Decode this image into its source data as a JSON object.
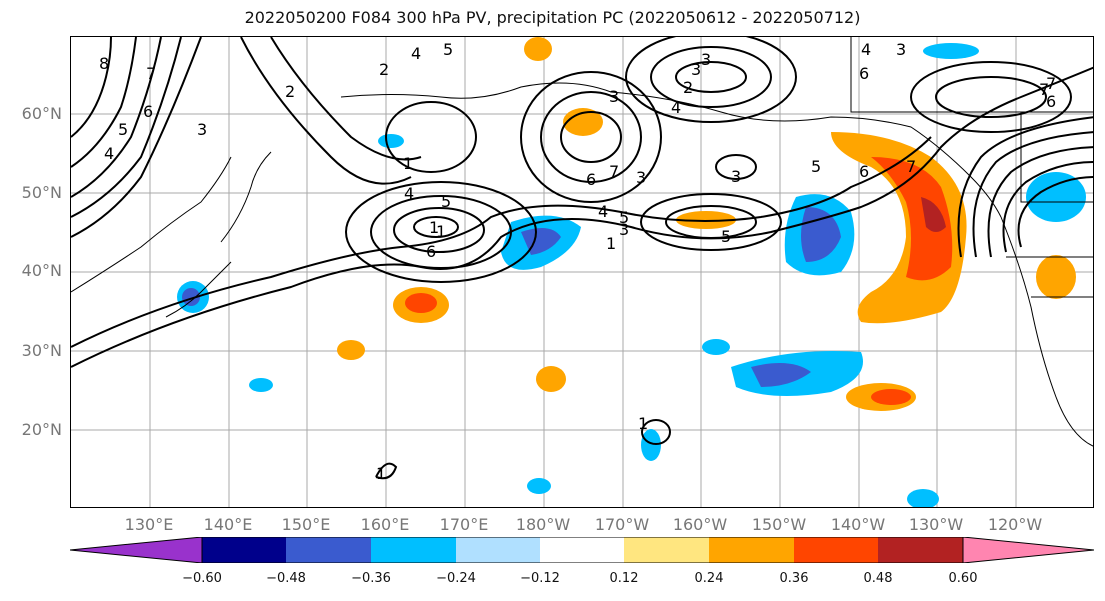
{
  "title": "2022050200 F084 300 hPa PV, precipitation PC (2022050612 - 2022050712)",
  "lat_labels": [
    "60°N",
    "50°N",
    "40°N",
    "30°N",
    "20°N"
  ],
  "lon_labels": [
    "130°E",
    "140°E",
    "150°E",
    "160°E",
    "170°E",
    "180°W",
    "170°W",
    "160°W",
    "150°W",
    "140°W",
    "130°W",
    "120°W"
  ],
  "contour_labels": [
    "8",
    "7",
    "6",
    "5",
    "4",
    "3",
    "2",
    "1",
    "4",
    "5",
    "4",
    "3",
    "2",
    "1",
    "4",
    "5",
    "6",
    "7",
    "3",
    "2",
    "3",
    "4",
    "6",
    "5",
    "6",
    "7",
    "3",
    "4",
    "3",
    "1",
    "5",
    "6",
    "7",
    "5",
    "3",
    "6",
    "7",
    "1",
    "1",
    "3",
    "1"
  ],
  "colorbar": {
    "ticks": [
      "−0.60",
      "−0.48",
      "−0.36",
      "−0.24",
      "−0.12",
      "0.12",
      "0.24",
      "0.36",
      "0.48",
      "0.60"
    ],
    "colors": [
      "#9932cc",
      "#00008b",
      "#3a5bcf",
      "#00bfff",
      "#b0e0ff",
      "#ffffff",
      "#ffe680",
      "#ffa500",
      "#ff4500",
      "#b22222",
      "#ff85b0"
    ]
  }
}
